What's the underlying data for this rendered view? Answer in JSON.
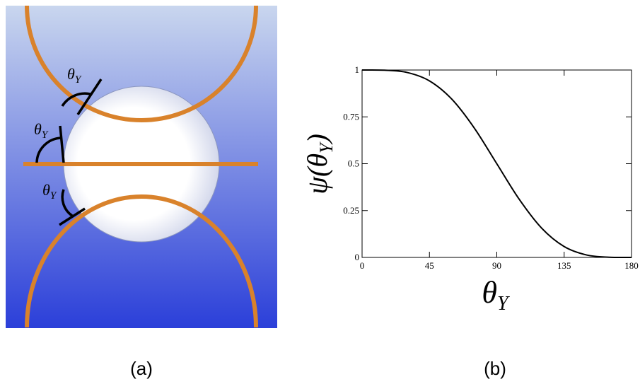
{
  "diagram": {
    "labels": [
      {
        "base": "θ",
        "sub": "Y"
      },
      {
        "base": "θ",
        "sub": "Y"
      },
      {
        "base": "θ",
        "sub": "Y"
      }
    ],
    "caption": "(a)"
  },
  "chart_data": {
    "type": "line",
    "caption": "(b)",
    "x_label": {
      "base": "θ",
      "sub": "Y"
    },
    "y_label": {
      "base": "ψ(θ",
      "sub": "Y",
      "end": ")"
    },
    "x": [
      0,
      15,
      30,
      45,
      60,
      75,
      90,
      105,
      120,
      135,
      150,
      165,
      180
    ],
    "series": [
      {
        "color": "#000000",
        "values": [
          1,
          0.999,
          0.987,
          0.942,
          0.844,
          0.69,
          0.5,
          0.31,
          0.156,
          0.058,
          0.013,
          0.001,
          0
        ]
      }
    ],
    "xlim": [
      0,
      180
    ],
    "xticks": [
      0,
      45,
      90,
      135,
      180
    ],
    "ylim": [
      0,
      1
    ],
    "yticks": [
      0,
      0.25,
      0.5,
      0.75,
      1
    ]
  }
}
